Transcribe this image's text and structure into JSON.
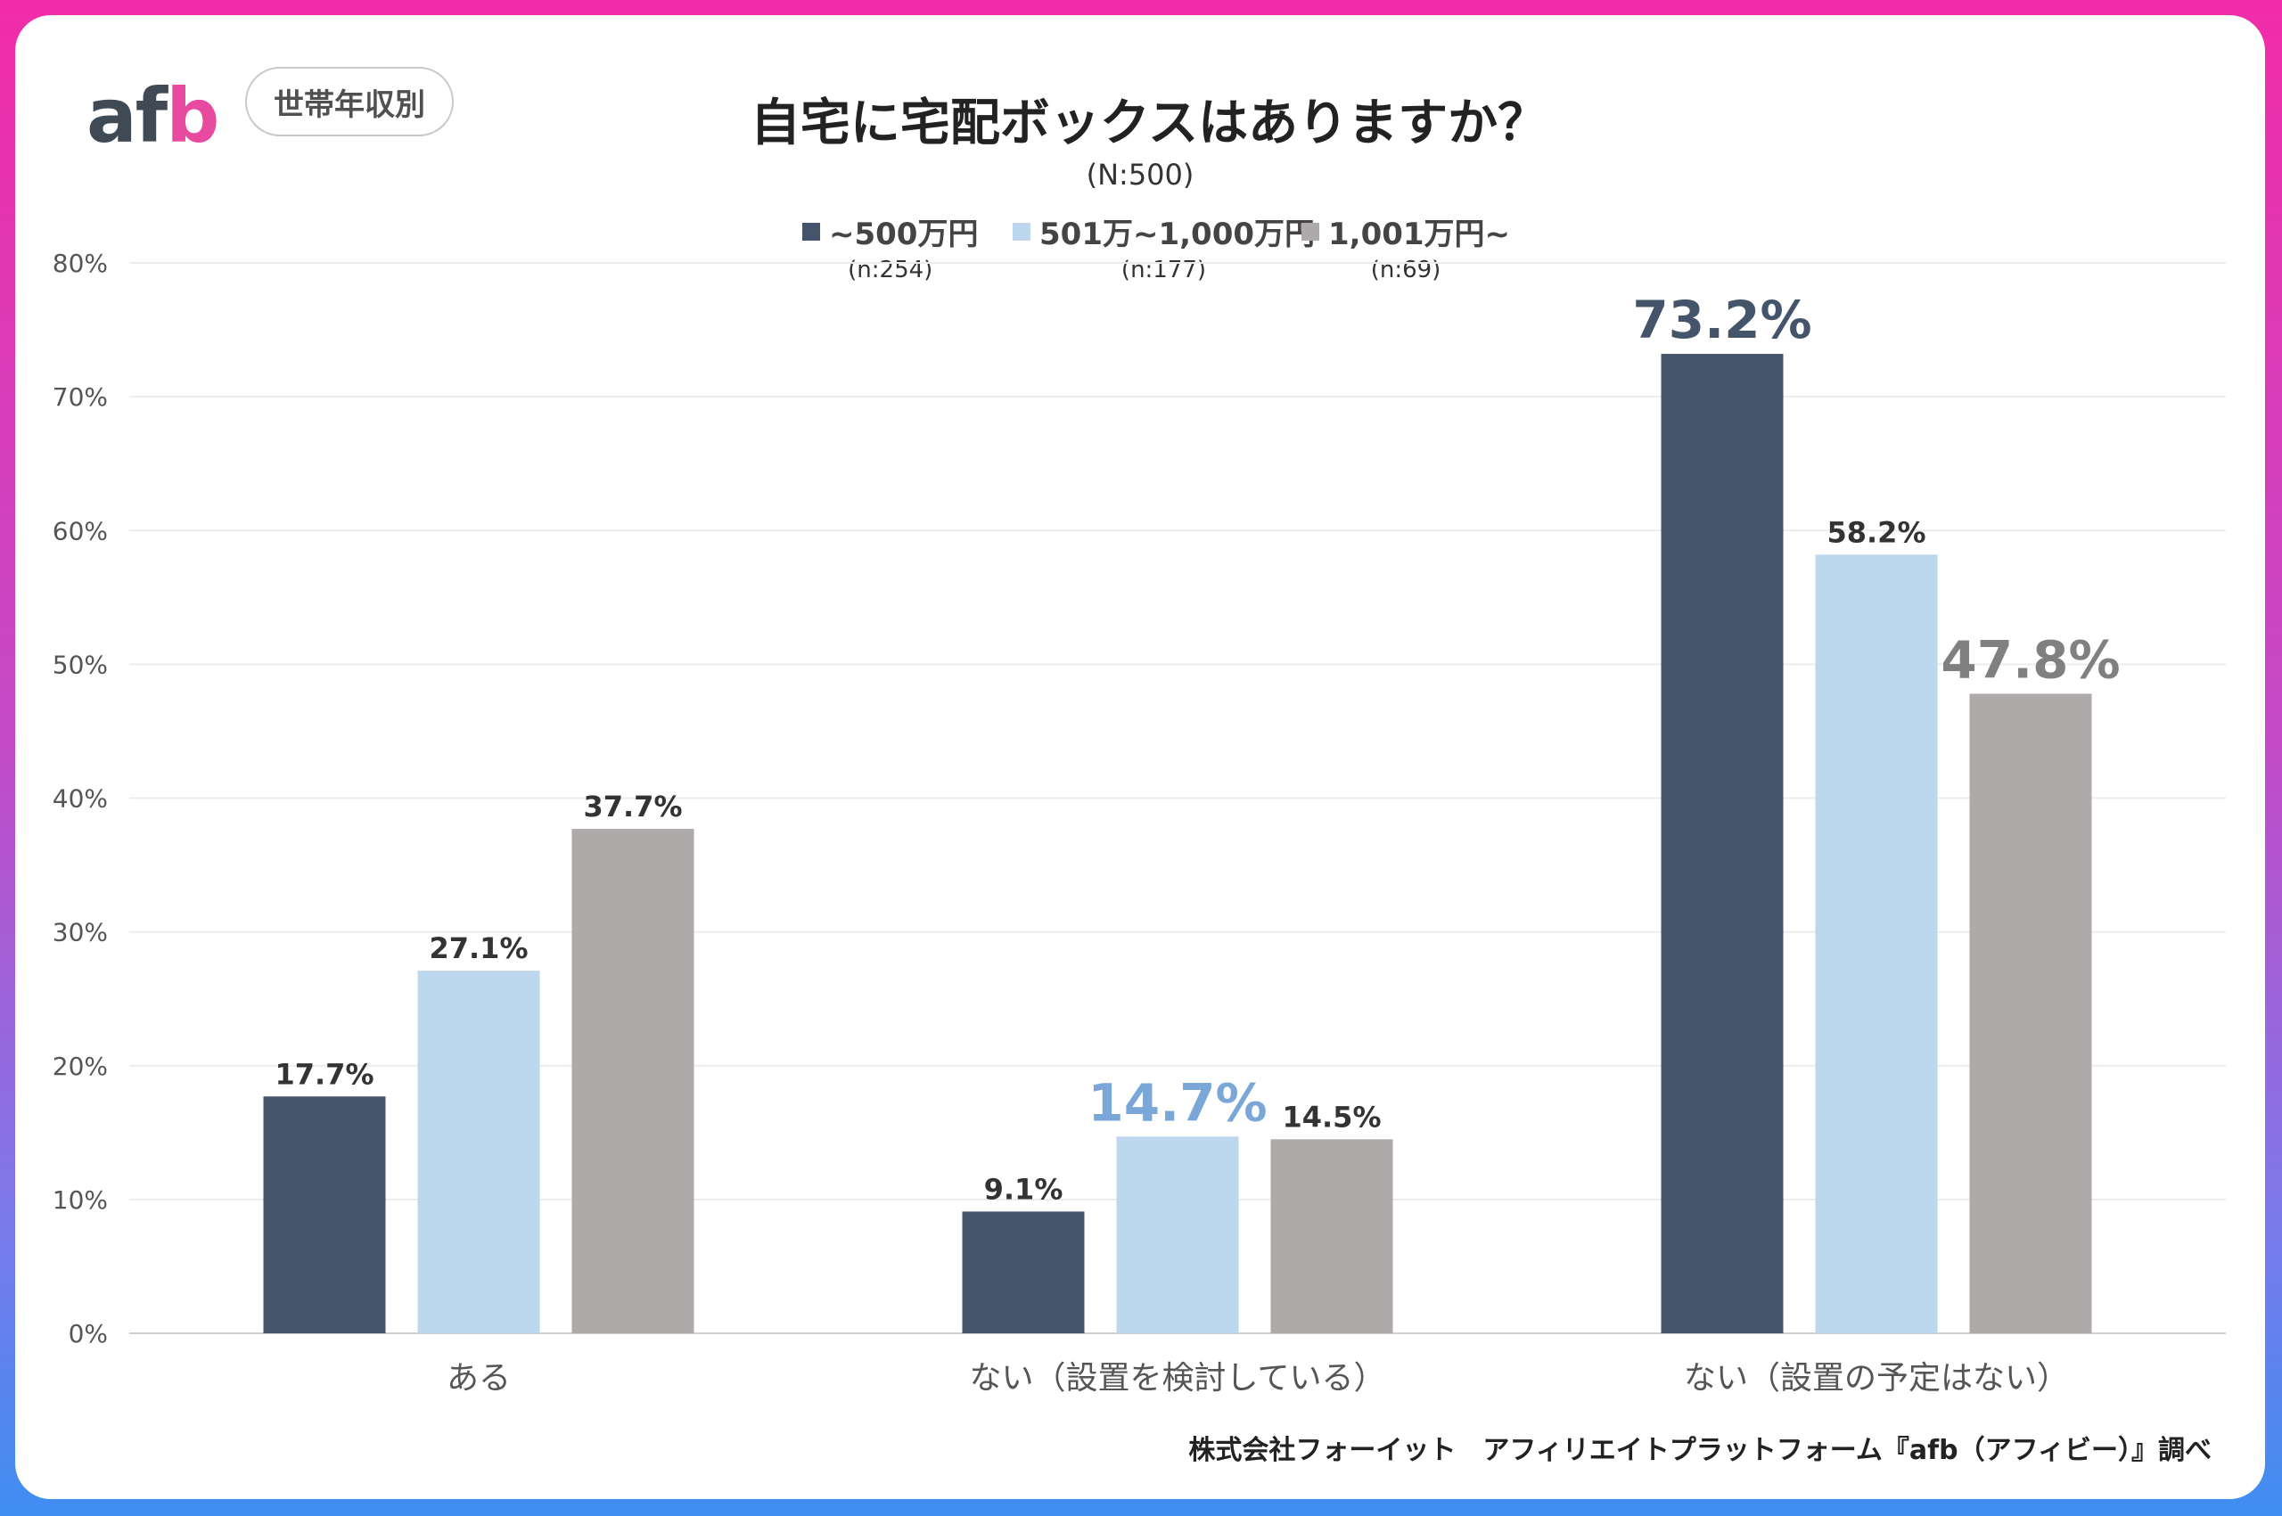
{
  "logo": {
    "text_a": "af",
    "text_b": "b"
  },
  "badge": "世帯年収別",
  "title": "自宅に宅配ボックスはありますか？",
  "subtitle": "(N:500)",
  "colors": {
    "series1": "#44546a",
    "series2": "#bdd7ee",
    "series3": "#aeaaaa",
    "highlight2": "#7ba7d8"
  },
  "chart_data": {
    "type": "bar",
    "categories": [
      "ある",
      "ない（設置を検討している）",
      "ない（設置の予定はない）"
    ],
    "series": [
      {
        "name": "~500万円",
        "n": "(n:254)",
        "values": [
          17.7,
          9.1,
          73.2
        ],
        "labels": [
          "17.7%",
          "9.1%",
          "73.2%"
        ]
      },
      {
        "name": "501万~1,000万円",
        "n": "(n:177)",
        "values": [
          27.1,
          14.7,
          58.2
        ],
        "labels": [
          "27.1%",
          "14.7%",
          "58.2%"
        ]
      },
      {
        "name": "1,001万円~",
        "n": "(n:69)",
        "values": [
          37.7,
          14.5,
          47.8
        ],
        "labels": [
          "37.7%",
          "14.5%",
          "47.8%"
        ]
      }
    ],
    "highlighted": [
      [
        1,
        1
      ],
      [
        2,
        0
      ],
      [
        2,
        2
      ]
    ],
    "ylim": [
      0,
      80
    ],
    "yticks": [
      "0%",
      "10%",
      "20%",
      "30%",
      "40%",
      "50%",
      "60%",
      "70%",
      "80%"
    ],
    "grid": true,
    "legend": "top-center"
  },
  "footer": "株式会社フォーイット　アフィリエイトプラットフォーム『afb（アフィビー）』調べ"
}
